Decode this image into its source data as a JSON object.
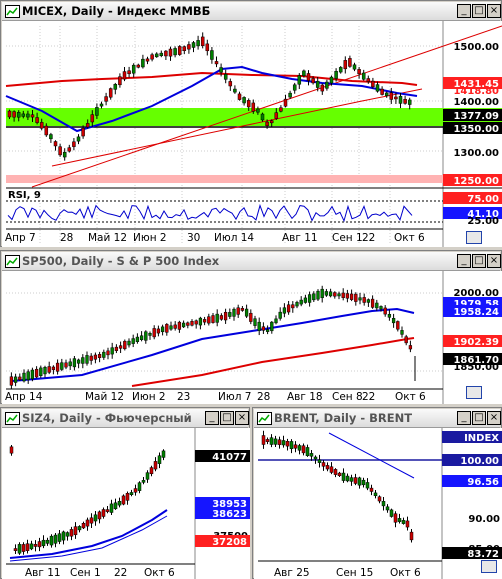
{
  "windows": {
    "micex": {
      "title": "MICEX, Daily - Индекс ММВБ",
      "price_labels": [
        "1500.00",
        "1431.45",
        "1418.80",
        "1400.00",
        "1377.09",
        "1350.00",
        "1300.00",
        "1250.00"
      ],
      "rsi_label": "RSI, 9",
      "rsi_values": [
        "75.00",
        "41.10",
        "25.00"
      ],
      "x_labels": [
        "Апр 7",
        "28",
        "Май 12",
        "Июн 2",
        "30",
        "Июл 14",
        "Авг 11",
        "Сен 1",
        "22",
        "Окт 6"
      ]
    },
    "sp500": {
      "title": "SP500, Daily - S & P 500 Index",
      "price_labels": [
        "2000.00",
        "1979.58",
        "1958.24",
        "1902.39",
        "1861.70",
        "1850.00"
      ],
      "x_labels": [
        "Апр 14",
        "Май 12",
        "Июн 2",
        "23",
        "Июл 7",
        "28",
        "Авг 18",
        "Сен 8",
        "22",
        "Окт 6"
      ]
    },
    "siz4": {
      "title": "SIZ4, Daily - Фьючерсный к",
      "price_labels": [
        "41077",
        "38953",
        "38623",
        "37500",
        "37208"
      ],
      "x_labels": [
        "Авг 11",
        "Сен 1",
        "22",
        "Окт 6"
      ]
    },
    "brent": {
      "title": "BRENT, Daily - BRENT",
      "price_labels": [
        "INDEX",
        "100.00",
        "96.56",
        "90.00",
        "85.00",
        "83.72"
      ],
      "x_labels": [
        "Авг 25",
        "Сен 15",
        "Окт 6"
      ]
    }
  },
  "colors": {
    "up": "#008000",
    "down": "#cc0000",
    "ma_fast": "#0000ff",
    "ma_slow": "#dd0000",
    "support_band": "#66ff00",
    "resist_band": "#ffb3b3",
    "label_blue": "#1515ff",
    "label_red": "#ff2020",
    "label_black": "#000000"
  }
}
